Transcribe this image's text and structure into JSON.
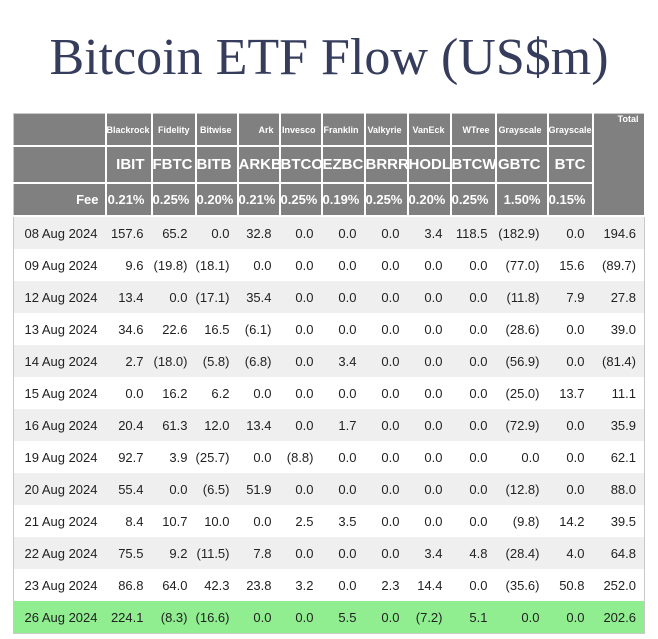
{
  "title": "Bitcoin ETF Flow (US$m)",
  "chart_data": {
    "type": "table",
    "title": "Bitcoin ETF Flow (US$m)",
    "units": "US$m",
    "negative_format": "parentheses-red",
    "corner_label": "",
    "fee_row_label": "Fee",
    "total_label": "Total",
    "columns": [
      {
        "issuer": "Blackrock",
        "ticker": "IBIT",
        "fee": "0.21%"
      },
      {
        "issuer": "Fidelity",
        "ticker": "FBTC",
        "fee": "0.25%"
      },
      {
        "issuer": "Bitwise",
        "ticker": "BITB",
        "fee": "0.20%"
      },
      {
        "issuer": "Ark",
        "ticker": "ARKB",
        "fee": "0.21%"
      },
      {
        "issuer": "Invesco",
        "ticker": "BTCO",
        "fee": "0.25%"
      },
      {
        "issuer": "Franklin",
        "ticker": "EZBC",
        "fee": "0.19%"
      },
      {
        "issuer": "Valkyrie",
        "ticker": "BRRR",
        "fee": "0.25%"
      },
      {
        "issuer": "VanEck",
        "ticker": "HODL",
        "fee": "0.20%"
      },
      {
        "issuer": "WTree",
        "ticker": "BTCW",
        "fee": "0.25%"
      },
      {
        "issuer": "Grayscale",
        "ticker": "GBTC",
        "fee": "1.50%"
      },
      {
        "issuer": "Grayscale",
        "ticker": "BTC",
        "fee": "0.15%"
      }
    ],
    "rows": [
      {
        "date": "08 Aug 2024",
        "values": [
          "157.6",
          "65.2",
          "0.0",
          "32.8",
          "0.0",
          "0.0",
          "0.0",
          "3.4",
          "118.5",
          "(182.9)",
          "0.0"
        ],
        "total": "194.6",
        "highlight": false
      },
      {
        "date": "09 Aug 2024",
        "values": [
          "9.6",
          "(19.8)",
          "(18.1)",
          "0.0",
          "0.0",
          "0.0",
          "0.0",
          "0.0",
          "0.0",
          "(77.0)",
          "15.6"
        ],
        "total": "(89.7)",
        "highlight": false
      },
      {
        "date": "12 Aug 2024",
        "values": [
          "13.4",
          "0.0",
          "(17.1)",
          "35.4",
          "0.0",
          "0.0",
          "0.0",
          "0.0",
          "0.0",
          "(11.8)",
          "7.9"
        ],
        "total": "27.8",
        "highlight": false
      },
      {
        "date": "13 Aug 2024",
        "values": [
          "34.6",
          "22.6",
          "16.5",
          "(6.1)",
          "0.0",
          "0.0",
          "0.0",
          "0.0",
          "0.0",
          "(28.6)",
          "0.0"
        ],
        "total": "39.0",
        "highlight": false
      },
      {
        "date": "14 Aug 2024",
        "values": [
          "2.7",
          "(18.0)",
          "(5.8)",
          "(6.8)",
          "0.0",
          "3.4",
          "0.0",
          "0.0",
          "0.0",
          "(56.9)",
          "0.0"
        ],
        "total": "(81.4)",
        "highlight": false
      },
      {
        "date": "15 Aug 2024",
        "values": [
          "0.0",
          "16.2",
          "6.2",
          "0.0",
          "0.0",
          "0.0",
          "0.0",
          "0.0",
          "0.0",
          "(25.0)",
          "13.7"
        ],
        "total": "11.1",
        "highlight": false
      },
      {
        "date": "16 Aug 2024",
        "values": [
          "20.4",
          "61.3",
          "12.0",
          "13.4",
          "0.0",
          "1.7",
          "0.0",
          "0.0",
          "0.0",
          "(72.9)",
          "0.0"
        ],
        "total": "35.9",
        "highlight": false
      },
      {
        "date": "19 Aug 2024",
        "values": [
          "92.7",
          "3.9",
          "(25.7)",
          "0.0",
          "(8.8)",
          "0.0",
          "0.0",
          "0.0",
          "0.0",
          "0.0",
          "0.0"
        ],
        "total": "62.1",
        "highlight": false
      },
      {
        "date": "20 Aug 2024",
        "values": [
          "55.4",
          "0.0",
          "(6.5)",
          "51.9",
          "0.0",
          "0.0",
          "0.0",
          "0.0",
          "0.0",
          "(12.8)",
          "0.0"
        ],
        "total": "88.0",
        "highlight": false
      },
      {
        "date": "21 Aug 2024",
        "values": [
          "8.4",
          "10.7",
          "10.0",
          "0.0",
          "2.5",
          "3.5",
          "0.0",
          "0.0",
          "0.0",
          "(9.8)",
          "14.2"
        ],
        "total": "39.5",
        "highlight": false
      },
      {
        "date": "22 Aug 2024",
        "values": [
          "75.5",
          "9.2",
          "(11.5)",
          "7.8",
          "0.0",
          "0.0",
          "0.0",
          "3.4",
          "4.8",
          "(28.4)",
          "4.0"
        ],
        "total": "64.8",
        "highlight": false
      },
      {
        "date": "23 Aug 2024",
        "values": [
          "86.8",
          "64.0",
          "42.3",
          "23.8",
          "3.2",
          "0.0",
          "2.3",
          "14.4",
          "0.0",
          "(35.6)",
          "50.8"
        ],
        "total": "252.0",
        "highlight": false
      },
      {
        "date": "26 Aug 2024",
        "values": [
          "224.1",
          "(8.3)",
          "(16.6)",
          "0.0",
          "0.0",
          "5.5",
          "0.0",
          "(7.2)",
          "5.1",
          "0.0",
          "0.0"
        ],
        "total": "202.6",
        "highlight": true
      }
    ]
  },
  "colors": {
    "title_text": "#353c5c",
    "header_bg": "#808080",
    "header_text": "#ffffff",
    "row_stripe": "#efefef",
    "highlight_row_bg": "#90ee90",
    "negative_text": "#ee0000",
    "value_text": "#222222",
    "table_border": "#c9c9c9"
  }
}
